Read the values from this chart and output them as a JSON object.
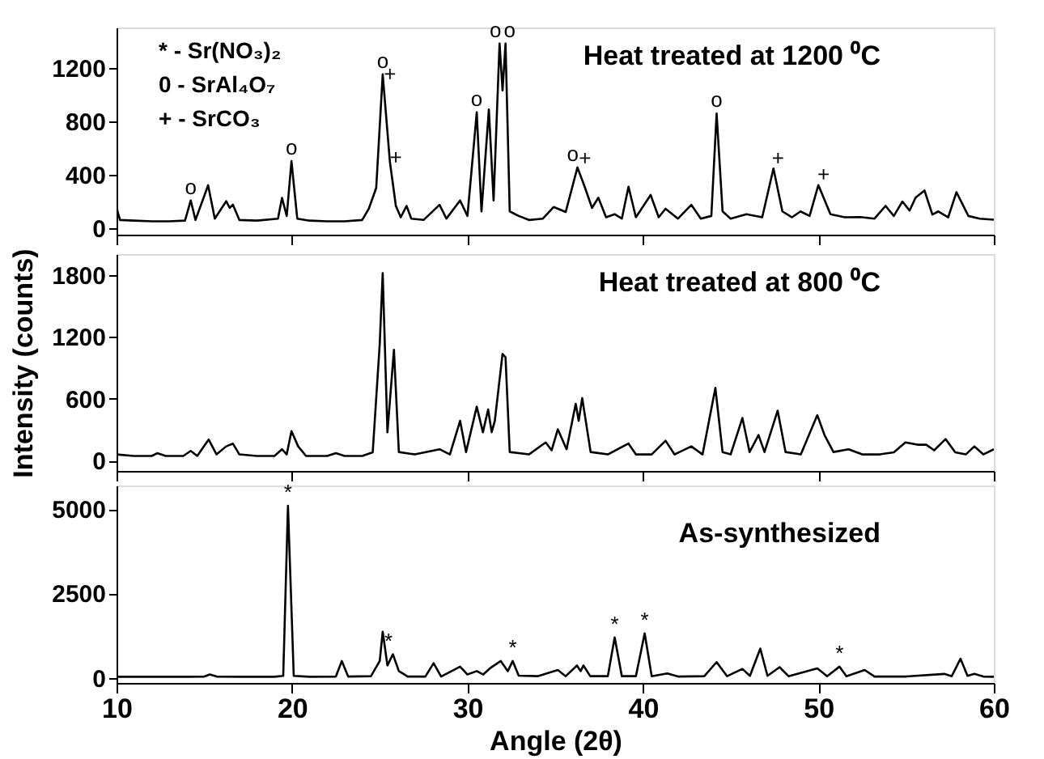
{
  "chart_data": [
    {
      "type": "line",
      "title": "Heat treated at 1200 ⁰C",
      "xlim": [
        10,
        60
      ],
      "xticks": [
        10,
        20,
        30,
        40,
        50,
        60
      ],
      "ylim": [
        -50,
        1500
      ],
      "yticks": [
        0,
        400,
        800,
        1200
      ],
      "tick_labels": "y",
      "grid": false,
      "marker": "none",
      "line_style": "solid",
      "annotations": [
        "* - Sr(NO₃)₂",
        "0 - SrAl₄O₇",
        "+ - SrCO₃",
        {
          "text": "o",
          "x": 14.23,
          "y": 206
        },
        {
          "text": "o",
          "x": 19.97,
          "y": 500
        },
        {
          "text": "o",
          "x": 25.17,
          "y": 1150
        },
        {
          "text": "+",
          "x": 25.58,
          "y": 1050
        },
        {
          "text": "+",
          "x": 25.92,
          "y": 430
        },
        {
          "text": "o",
          "x": 30.53,
          "y": 865
        },
        {
          "text": "o",
          "x": 31.6,
          "y": 1380
        },
        {
          "text": "o",
          "x": 32.4,
          "y": 1380
        },
        {
          "text": "o",
          "x": 36.0,
          "y": 453
        },
        {
          "text": "+",
          "x": 36.7,
          "y": 420
        },
        {
          "text": "o",
          "x": 44.2,
          "y": 857
        },
        {
          "text": "+",
          "x": 47.7,
          "y": 420
        },
        {
          "text": "+",
          "x": 50.3,
          "y": 300
        }
      ],
      "series": [
        {
          "color": "#000000",
          "x": [
            10.0,
            10.2,
            11.0,
            12.0,
            13.0,
            13.9,
            14.23,
            14.5,
            15.22,
            15.6,
            16.25,
            16.45,
            16.63,
            17.0,
            18.0,
            19.2,
            19.43,
            19.7,
            19.97,
            20.3,
            21.0,
            22.0,
            23.0,
            24.0,
            24.38,
            24.8,
            25.17,
            25.58,
            25.92,
            26.2,
            26.53,
            26.8,
            27.5,
            28.41,
            28.8,
            29.58,
            30.0,
            30.53,
            30.8,
            31.22,
            31.49,
            31.83,
            32.0,
            32.17,
            32.41,
            32.92,
            33.5,
            34.3,
            34.91,
            35.6,
            36.27,
            36.68,
            37.1,
            37.46,
            37.9,
            38.39,
            38.8,
            39.18,
            39.6,
            40.44,
            40.9,
            41.29,
            42.0,
            42.76,
            43.3,
            43.9,
            44.2,
            44.54,
            45.0,
            45.9,
            46.8,
            47.44,
            47.95,
            48.5,
            48.98,
            49.5,
            50.0,
            50.69,
            51.5,
            52.4,
            53.2,
            53.83,
            54.3,
            54.79,
            55.2,
            55.54,
            56.05,
            56.5,
            56.84,
            57.4,
            57.87,
            58.55,
            59.2,
            60.0
          ],
          "values": [
            150,
            60,
            55,
            50,
            50,
            55,
            206,
            60,
            320,
            70,
            200,
            150,
            175,
            60,
            55,
            70,
            225,
            90,
            500,
            70,
            55,
            50,
            50,
            60,
            145,
            300,
            1150,
            495,
            165,
            80,
            165,
            70,
            60,
            173,
            70,
            206,
            90,
            865,
            124,
            886,
            206,
            1380,
            1030,
            1380,
            124,
            90,
            60,
            70,
            157,
            120,
            453,
            309,
            150,
            227,
            80,
            103,
            70,
            309,
            80,
            247,
            80,
            144,
            70,
            173,
            70,
            90,
            857,
            124,
            70,
            103,
            80,
            445,
            124,
            80,
            124,
            90,
            321,
            103,
            80,
            82,
            70,
            165,
            90,
            198,
            130,
            227,
            280,
            100,
            124,
            80,
            268,
            90,
            70,
            62
          ]
        }
      ]
    },
    {
      "type": "line",
      "title": "Heat treated at 800 ⁰C",
      "ylabel": "Intensity (counts)",
      "xlim": [
        10,
        60
      ],
      "xticks": [
        10,
        20,
        30,
        40,
        50,
        60
      ],
      "ylim": [
        -100,
        2000
      ],
      "yticks": [
        0,
        600,
        1200,
        1800
      ],
      "tick_labels": "y",
      "grid": false,
      "marker": "none",
      "line_style": "solid",
      "series": [
        {
          "color": "#000000",
          "x": [
            10.0,
            11.0,
            12.0,
            12.32,
            12.8,
            13.8,
            14.23,
            14.6,
            15.25,
            15.7,
            16.25,
            16.63,
            17.0,
            18.0,
            19.0,
            19.43,
            19.7,
            19.97,
            20.35,
            20.8,
            22.0,
            22.5,
            23.0,
            24.0,
            24.6,
            25.0,
            25.17,
            25.44,
            25.81,
            26.09,
            27.0,
            28.41,
            29.0,
            29.58,
            29.92,
            30.53,
            30.88,
            31.18,
            31.38,
            31.56,
            32.0,
            32.17,
            32.41,
            33.5,
            34.46,
            34.8,
            35.15,
            35.65,
            36.17,
            36.34,
            36.54,
            37.02,
            38.0,
            39.18,
            39.6,
            40.5,
            41.29,
            41.8,
            42.76,
            43.4,
            44.13,
            44.54,
            45.0,
            45.67,
            46.08,
            46.59,
            46.93,
            47.68,
            48.13,
            49.0,
            49.94,
            50.35,
            50.86,
            51.72,
            52.5,
            53.5,
            54.3,
            54.96,
            55.65,
            56.15,
            56.6,
            57.25,
            57.8,
            58.4,
            58.89,
            59.4,
            60.0
          ],
          "values": [
            60,
            45,
            45,
            72,
            45,
            45,
            94,
            45,
            204,
            60,
            138,
            165,
            60,
            45,
            45,
            110,
            60,
            286,
            138,
            45,
            45,
            72,
            45,
            45,
            80,
            1128,
            1815,
            275,
            1073,
            83,
            60,
            110,
            60,
            385,
            83,
            523,
            275,
            495,
            275,
            385,
            1034,
            1001,
            83,
            60,
            176,
            100,
            303,
            110,
            550,
            385,
            605,
            83,
            60,
            165,
            60,
            60,
            193,
            60,
            138,
            60,
            704,
            83,
            60,
            413,
            83,
            248,
            83,
            484,
            83,
            60,
            440,
            248,
            83,
            110,
            60,
            60,
            80,
            176,
            154,
            154,
            100,
            209,
            80,
            60,
            138,
            60,
            110
          ]
        }
      ]
    },
    {
      "type": "line",
      "title": "As-synthesized",
      "xlabel": "Angle (2θ)",
      "xlim": [
        10,
        60
      ],
      "xticks": [
        10,
        20,
        30,
        40,
        50,
        60
      ],
      "ylim": [
        -150,
        5700
      ],
      "yticks": [
        0,
        2500,
        5000
      ],
      "grid": false,
      "marker": "none",
      "line_style": "solid",
      "annotations": [
        {
          "text": "*",
          "x": 19.77,
          "y": 5100
        },
        {
          "text": "*",
          "x": 25.5,
          "y": 700
        },
        {
          "text": "*",
          "x": 32.58,
          "y": 500
        },
        {
          "text": "*",
          "x": 38.39,
          "y": 1200
        },
        {
          "text": "*",
          "x": 40.1,
          "y": 1317
        },
        {
          "text": "*",
          "x": 51.2,
          "y": 333
        }
      ],
      "series": [
        {
          "color": "#000000",
          "x": [
            10.0,
            12.0,
            14.0,
            15.0,
            15.32,
            15.7,
            17.0,
            19.0,
            19.5,
            19.77,
            20.1,
            21.0,
            22.5,
            22.84,
            23.2,
            24.5,
            25.0,
            25.17,
            25.44,
            25.75,
            26.09,
            26.6,
            27.6,
            28.07,
            28.5,
            29.58,
            30.0,
            30.53,
            30.9,
            31.28,
            31.9,
            32.3,
            32.58,
            32.92,
            34.0,
            35.15,
            35.6,
            36.24,
            36.45,
            36.61,
            37.0,
            38.0,
            38.39,
            38.8,
            39.6,
            40.1,
            40.5,
            41.39,
            42.0,
            43.5,
            44.2,
            44.8,
            45.67,
            46.1,
            46.69,
            47.1,
            47.79,
            48.3,
            49.94,
            50.5,
            51.2,
            51.6,
            52.64,
            53.2,
            55.0,
            57.18,
            57.6,
            58.1,
            58.5,
            58.89,
            59.4,
            60.0
          ],
          "values": [
            33,
            33,
            33,
            40,
            100,
            40,
            33,
            33,
            60,
            5100,
            60,
            33,
            40,
            500,
            40,
            50,
            500,
            1367,
            367,
            700,
            200,
            40,
            40,
            433,
            40,
            333,
            100,
            200,
            100,
            283,
            500,
            200,
            500,
            67,
            50,
            233,
            50,
            367,
            200,
            367,
            50,
            50,
            1200,
            50,
            50,
            1317,
            50,
            133,
            40,
            50,
            467,
            50,
            267,
            60,
            867,
            60,
            317,
            50,
            283,
            50,
            333,
            50,
            233,
            40,
            40,
            117,
            50,
            567,
            60,
            117,
            40,
            33
          ]
        }
      ]
    }
  ]
}
